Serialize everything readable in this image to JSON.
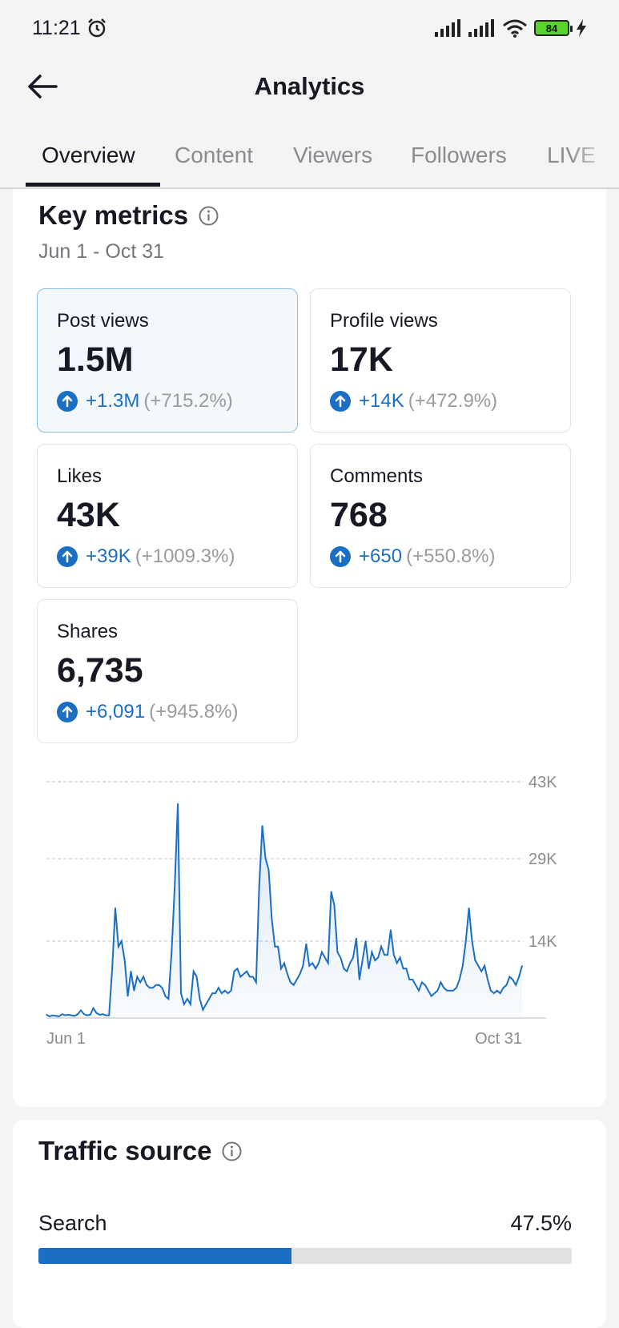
{
  "status_bar": {
    "time": "11:21",
    "battery": "84",
    "icons": [
      "alarm-icon",
      "signal-icon",
      "signal-icon",
      "wifi-icon",
      "battery-icon",
      "charging-icon"
    ]
  },
  "header": {
    "title": "Analytics",
    "back_icon": "back-arrow-icon"
  },
  "tabs": [
    {
      "label": "Overview",
      "active": true
    },
    {
      "label": "Content",
      "active": false
    },
    {
      "label": "Viewers",
      "active": false
    },
    {
      "label": "Followers",
      "active": false
    },
    {
      "label": "LIVE",
      "active": false
    }
  ],
  "key_metrics": {
    "title": "Key metrics",
    "info_icon": "info-icon",
    "date_range": "Jun 1 - Oct 31",
    "metrics": [
      {
        "label": "Post views",
        "value": "1.5M",
        "change": "+1.3M",
        "pct": "(+715.2%)",
        "selected": true
      },
      {
        "label": "Profile views",
        "value": "17K",
        "change": "+14K",
        "pct": "(+472.9%)",
        "selected": false
      },
      {
        "label": "Likes",
        "value": "43K",
        "change": "+39K",
        "pct": "(+1009.3%)",
        "selected": false
      },
      {
        "label": "Comments",
        "value": "768",
        "change": "+650",
        "pct": "(+550.8%)",
        "selected": false
      },
      {
        "label": "Shares",
        "value": "6,735",
        "change": "+6,091",
        "pct": "(+945.8%)",
        "selected": false
      }
    ]
  },
  "chart_data": {
    "type": "area",
    "series_color": "#1a6fc4",
    "y_ticks": [
      "43K",
      "29K",
      "14K"
    ],
    "x_labels": [
      "Jun 1",
      "Oct 31"
    ],
    "ylim": [
      0,
      43000
    ],
    "grid": "dashed horizontal",
    "x": [
      0,
      1,
      2,
      3,
      4,
      5,
      6,
      7,
      8,
      9,
      10,
      11,
      12,
      13,
      14,
      15,
      16,
      17,
      18,
      19,
      20,
      21,
      22,
      23,
      24,
      25,
      26,
      27,
      28,
      29,
      30,
      31,
      32,
      33,
      34,
      35,
      36,
      37,
      38,
      39,
      40,
      41,
      42,
      43,
      44,
      45,
      46,
      47,
      48,
      49,
      50,
      51,
      52,
      53,
      54,
      55,
      56,
      57,
      58,
      59,
      60,
      61,
      62,
      63,
      64,
      65,
      66,
      67,
      68,
      69,
      70,
      71,
      72,
      73,
      74,
      75,
      76,
      77,
      78,
      79,
      80,
      81,
      82,
      83,
      84,
      85,
      86,
      87,
      88,
      89,
      90,
      91,
      92,
      93,
      94,
      95,
      96,
      97,
      98,
      99,
      100,
      101,
      102,
      103,
      104,
      105,
      106,
      107,
      108,
      109,
      110,
      111,
      112,
      113,
      114,
      115,
      116,
      117,
      118,
      119,
      120,
      121,
      122,
      123,
      124,
      125,
      126,
      127,
      128,
      129,
      130,
      131,
      132,
      133,
      134,
      135,
      136,
      137,
      138,
      139,
      140,
      141,
      142,
      143,
      144,
      145,
      146,
      147,
      148,
      149,
      150,
      151,
      152
    ],
    "values": [
      600,
      300,
      500,
      400,
      300,
      700,
      500,
      600,
      500,
      400,
      700,
      1400,
      700,
      500,
      600,
      1800,
      900,
      600,
      700,
      500,
      500,
      9000,
      20000,
      13000,
      14000,
      10500,
      4000,
      8500,
      5000,
      7500,
      6500,
      7500,
      6000,
      5500,
      5500,
      6000,
      6000,
      5500,
      4000,
      3500,
      12000,
      24000,
      39000,
      4500,
      2500,
      3500,
      2500,
      8500,
      7500,
      3500,
      1500,
      2500,
      3500,
      4500,
      4500,
      5500,
      4500,
      5000,
      4500,
      5000,
      8500,
      9000,
      7500,
      8000,
      8500,
      7500,
      7500,
      6500,
      24000,
      35000,
      29000,
      27000,
      18000,
      13000,
      13000,
      9000,
      10000,
      8000,
      6500,
      6000,
      7000,
      8000,
      9500,
      13500,
      9500,
      10000,
      9000,
      10000,
      12000,
      11000,
      10000,
      23000,
      20500,
      12000,
      11000,
      9000,
      8500,
      10000,
      11000,
      14500,
      7000,
      10500,
      14000,
      9000,
      12000,
      10500,
      11000,
      13000,
      11500,
      11500,
      16000,
      11500,
      10000,
      11000,
      9000,
      9000,
      7000,
      7000,
      6000,
      5000,
      6500,
      6000,
      5000,
      4000,
      4500,
      5000,
      6500,
      5500,
      5000,
      5000,
      5000,
      5500,
      7000,
      9500,
      14000,
      20000,
      14000,
      10500,
      9500,
      8500,
      9500,
      7000,
      5000,
      4500,
      5000,
      4500,
      5500,
      6000,
      7500,
      7000,
      6000,
      7500,
      9500
    ]
  },
  "traffic_source": {
    "title": "Traffic source",
    "info_icon": "info-icon",
    "rows": [
      {
        "label": "Search",
        "value": "47.5%",
        "fraction": 0.475
      }
    ]
  }
}
